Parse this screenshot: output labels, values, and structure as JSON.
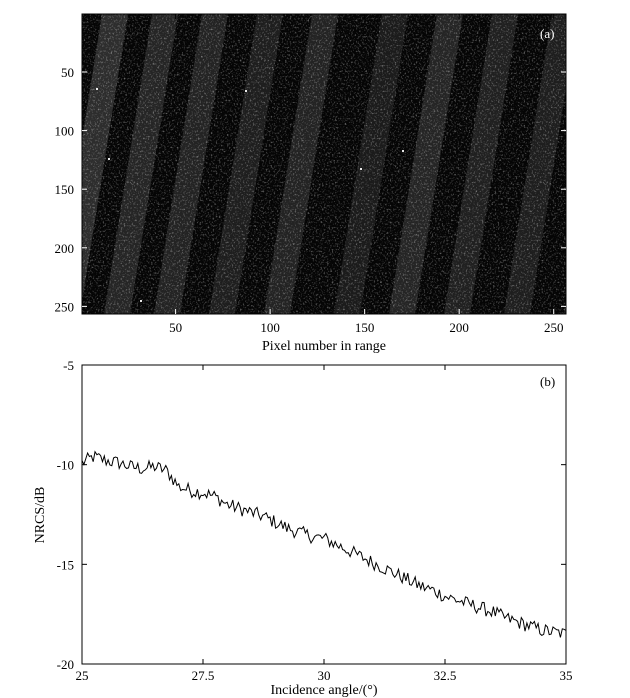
{
  "chart_data": [
    {
      "type": "heatmap",
      "panel_label": "(a)",
      "xlabel": "Pixel number in range",
      "ylabel": "",
      "xlim": [
        0.5,
        256.5
      ],
      "ylim": [
        0.5,
        256.5
      ],
      "y_reversed": true,
      "xticks": [
        50,
        100,
        150,
        200,
        250
      ],
      "yticks": [
        50,
        100,
        150,
        200,
        250
      ],
      "colormap": "gray",
      "description_values": "SAR intensity image, 256 x 256 pixels, mostly dark with faint bright streaks oriented diagonally"
    },
    {
      "type": "line",
      "panel_label": "(b)",
      "xlabel": "Incidence angle/(°)",
      "ylabel": "NRCS/dB",
      "xlim": [
        25,
        35
      ],
      "ylim": [
        -20,
        -5
      ],
      "xticks": [
        25,
        27.5,
        30,
        32.5,
        35
      ],
      "yticks": [
        -20,
        -15,
        -10,
        -5
      ],
      "line_color": "#000000",
      "series": [
        {
          "x": [
            25.0,
            25.25,
            25.5,
            25.75,
            26.0,
            26.25,
            26.5,
            26.75,
            27.0,
            27.25,
            27.5,
            27.75,
            28.0,
            28.25,
            28.5,
            28.75,
            29.0,
            29.25,
            29.5,
            29.75,
            30.0,
            30.25,
            30.5,
            30.75,
            31.0,
            31.25,
            31.5,
            31.75,
            32.0,
            32.25,
            32.5,
            32.75,
            33.0,
            33.25,
            33.5,
            33.75,
            34.0,
            34.25,
            34.5,
            34.75,
            35.0
          ],
          "values": [
            -9.9,
            -9.6,
            -9.8,
            -9.9,
            -10.1,
            -10.2,
            -10.1,
            -10.3,
            -11.1,
            -11.3,
            -11.4,
            -11.6,
            -12.0,
            -12.2,
            -12.4,
            -12.6,
            -12.9,
            -13.2,
            -13.4,
            -13.6,
            -13.7,
            -14.0,
            -14.3,
            -14.6,
            -14.9,
            -15.2,
            -15.5,
            -15.8,
            -16.1,
            -16.3,
            -16.6,
            -16.8,
            -17.0,
            -17.2,
            -17.4,
            -17.7,
            -17.9,
            -18.1,
            -18.3,
            -18.4,
            -18.5
          ]
        }
      ]
    }
  ]
}
